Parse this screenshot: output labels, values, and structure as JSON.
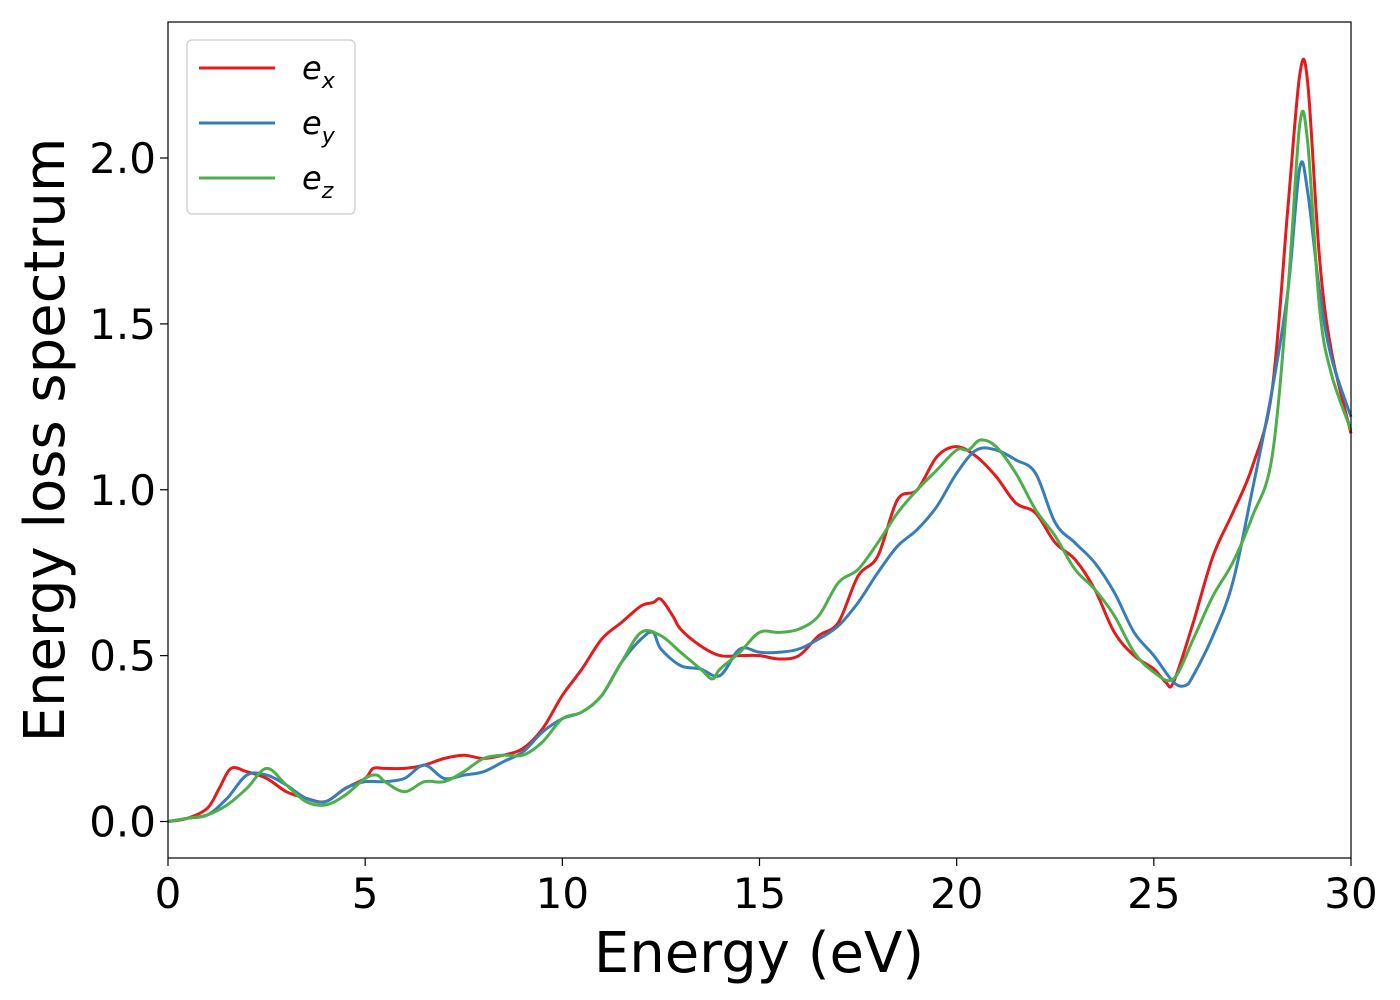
{
  "chart_data": {
    "type": "line",
    "title": "",
    "xlabel": "Energy (eV)",
    "ylabel": "Energy loss spectrum",
    "xlim": [
      0,
      30
    ],
    "ylim": [
      -0.11,
      2.41
    ],
    "xticks": [
      0,
      5,
      10,
      15,
      20,
      25,
      30
    ],
    "xtick_labels": [
      "0",
      "5",
      "10",
      "15",
      "20",
      "25",
      "30"
    ],
    "yticks": [
      0.0,
      0.5,
      1.0,
      1.5,
      2.0
    ],
    "ytick_labels": [
      "0.0",
      "0.5",
      "1.0",
      "1.5",
      "2.0"
    ],
    "grid": false,
    "legend_position": "top-left",
    "series": [
      {
        "name": "e",
        "subscript": "x",
        "color": "#e41a1c",
        "x": [
          0,
          0.5,
          1.0,
          1.3,
          1.6,
          2.0,
          2.5,
          3.0,
          3.5,
          4.0,
          4.5,
          5.0,
          5.2,
          5.5,
          6.0,
          6.5,
          7.0,
          7.5,
          8.0,
          8.5,
          9.0,
          9.5,
          10.0,
          10.5,
          11.0,
          11.5,
          12.0,
          12.3,
          12.5,
          12.8,
          13.0,
          13.5,
          14.0,
          14.5,
          15.0,
          15.5,
          16.0,
          16.5,
          17.0,
          17.5,
          18.0,
          18.5,
          19.0,
          19.5,
          20.0,
          20.5,
          21.0,
          21.5,
          22.0,
          22.5,
          23.0,
          23.5,
          24.0,
          24.5,
          25.0,
          25.3,
          25.5,
          26.0,
          26.5,
          27.0,
          27.5,
          28.0,
          28.4,
          28.7,
          28.9,
          29.2,
          29.5,
          30.0
        ],
        "y": [
          0.0,
          0.01,
          0.04,
          0.1,
          0.16,
          0.15,
          0.13,
          0.09,
          0.07,
          0.06,
          0.1,
          0.13,
          0.16,
          0.16,
          0.16,
          0.17,
          0.19,
          0.2,
          0.19,
          0.2,
          0.22,
          0.28,
          0.38,
          0.46,
          0.55,
          0.6,
          0.65,
          0.66,
          0.67,
          0.62,
          0.58,
          0.53,
          0.5,
          0.5,
          0.5,
          0.49,
          0.5,
          0.56,
          0.6,
          0.74,
          0.8,
          0.97,
          1.0,
          1.1,
          1.13,
          1.1,
          1.04,
          0.96,
          0.93,
          0.84,
          0.79,
          0.7,
          0.57,
          0.5,
          0.46,
          0.42,
          0.42,
          0.6,
          0.8,
          0.93,
          1.07,
          1.3,
          1.85,
          2.25,
          2.23,
          1.7,
          1.42,
          1.17
        ]
      },
      {
        "name": "e",
        "subscript": "y",
        "color": "#377eb8",
        "x": [
          0,
          0.5,
          1.0,
          1.5,
          2.0,
          2.5,
          3.0,
          3.5,
          4.0,
          4.5,
          5.0,
          5.5,
          6.0,
          6.5,
          7.0,
          7.5,
          8.0,
          8.5,
          9.0,
          9.5,
          10.0,
          10.5,
          11.0,
          11.5,
          12.0,
          12.3,
          12.5,
          13.0,
          13.5,
          14.0,
          14.5,
          15.0,
          15.5,
          16.0,
          16.5,
          17.0,
          17.5,
          18.0,
          18.5,
          19.0,
          19.5,
          20.0,
          20.5,
          21.0,
          21.5,
          22.0,
          22.5,
          23.0,
          23.5,
          24.0,
          24.5,
          25.0,
          25.5,
          25.8,
          26.0,
          26.5,
          27.0,
          27.5,
          28.0,
          28.4,
          28.7,
          28.9,
          29.2,
          29.5,
          30.0
        ],
        "y": [
          0.0,
          0.01,
          0.02,
          0.07,
          0.14,
          0.14,
          0.11,
          0.07,
          0.06,
          0.1,
          0.12,
          0.12,
          0.13,
          0.17,
          0.13,
          0.14,
          0.15,
          0.18,
          0.21,
          0.27,
          0.31,
          0.33,
          0.38,
          0.48,
          0.55,
          0.57,
          0.52,
          0.47,
          0.46,
          0.44,
          0.52,
          0.51,
          0.51,
          0.52,
          0.55,
          0.59,
          0.66,
          0.75,
          0.83,
          0.88,
          0.95,
          1.05,
          1.12,
          1.12,
          1.09,
          1.05,
          0.9,
          0.84,
          0.78,
          0.69,
          0.57,
          0.5,
          0.42,
          0.41,
          0.44,
          0.56,
          0.72,
          1.0,
          1.3,
          1.6,
          1.97,
          1.9,
          1.6,
          1.4,
          1.22
        ]
      },
      {
        "name": "e",
        "subscript": "z",
        "color": "#4daf4a",
        "x": [
          0,
          0.5,
          1.0,
          1.5,
          2.0,
          2.5,
          3.0,
          3.5,
          4.0,
          4.5,
          5.0,
          5.3,
          5.5,
          6.0,
          6.5,
          7.0,
          7.5,
          8.0,
          8.5,
          9.0,
          9.5,
          10.0,
          10.5,
          11.0,
          11.5,
          12.0,
          12.5,
          13.0,
          13.5,
          13.8,
          14.0,
          14.5,
          15.0,
          15.5,
          16.0,
          16.5,
          17.0,
          17.5,
          18.0,
          18.5,
          19.0,
          19.5,
          20.0,
          20.3,
          20.6,
          21.0,
          21.5,
          22.0,
          22.5,
          23.0,
          23.5,
          24.0,
          24.5,
          25.0,
          25.5,
          26.0,
          26.5,
          27.0,
          27.5,
          28.0,
          28.4,
          28.7,
          28.9,
          29.2,
          29.5,
          30.0
        ],
        "y": [
          0.0,
          0.01,
          0.02,
          0.05,
          0.1,
          0.16,
          0.11,
          0.06,
          0.05,
          0.08,
          0.13,
          0.14,
          0.12,
          0.09,
          0.12,
          0.12,
          0.15,
          0.19,
          0.2,
          0.2,
          0.24,
          0.31,
          0.33,
          0.38,
          0.48,
          0.57,
          0.56,
          0.51,
          0.46,
          0.43,
          0.46,
          0.51,
          0.57,
          0.57,
          0.58,
          0.62,
          0.72,
          0.76,
          0.84,
          0.93,
          1.0,
          1.06,
          1.12,
          1.12,
          1.15,
          1.13,
          1.05,
          0.94,
          0.86,
          0.76,
          0.7,
          0.62,
          0.51,
          0.45,
          0.43,
          0.55,
          0.68,
          0.78,
          0.92,
          1.1,
          1.6,
          2.1,
          2.05,
          1.55,
          1.35,
          1.18
        ]
      }
    ]
  }
}
